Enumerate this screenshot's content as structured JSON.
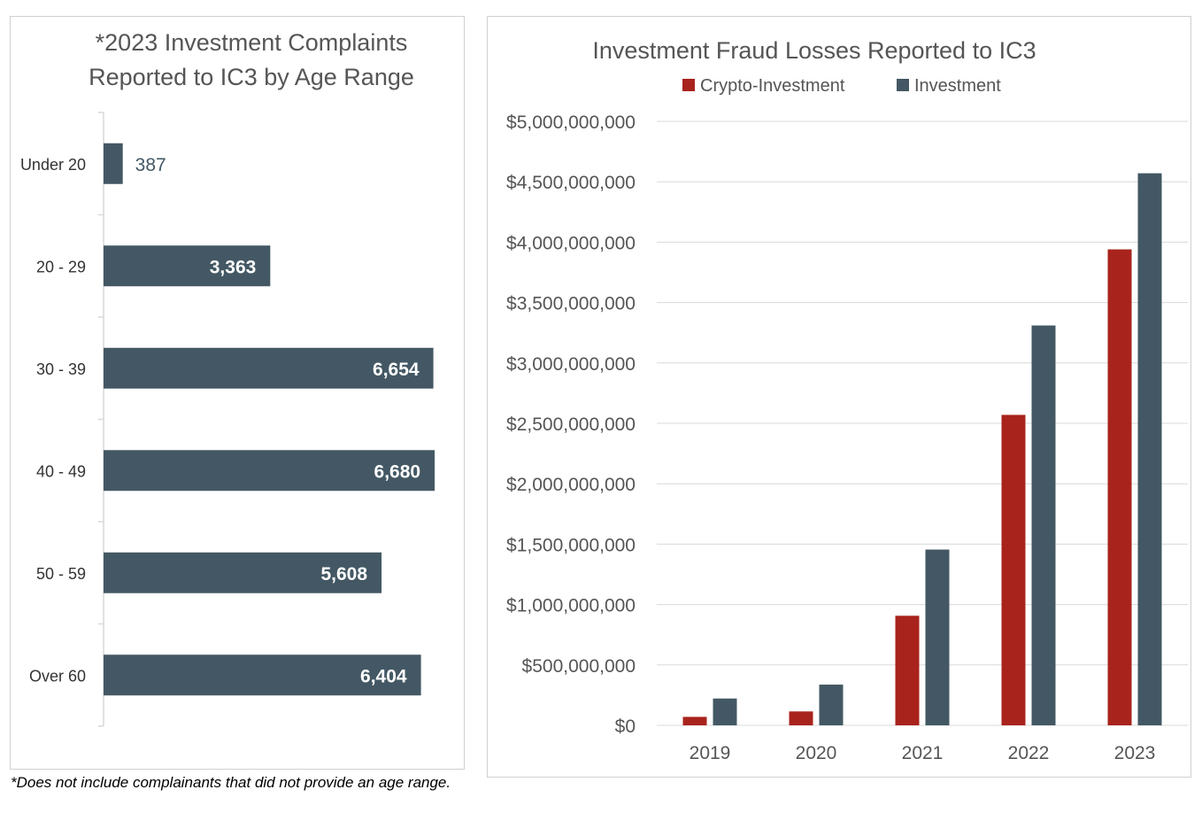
{
  "colors": {
    "bar_dark": "#435864",
    "crypto": "#a8231c",
    "investment": "#435864",
    "axis_text": "#444444",
    "title_text": "#555555",
    "grid": "#d9d9d9",
    "label_light": "#ffffff",
    "label_dark": "#435864"
  },
  "chart_data": [
    {
      "type": "bar",
      "orientation": "horizontal",
      "title_lines": [
        "*2023 Investment Complaints",
        "Reported to IC3 by Age Range"
      ],
      "categories": [
        "Under 20",
        "20 - 29",
        "30 - 39",
        "40 - 49",
        "50 - 59",
        "Over 60"
      ],
      "values": [
        387,
        3363,
        6654,
        6680,
        5608,
        6404
      ],
      "data_labels": [
        "387",
        "3,363",
        "6,654",
        "6,680",
        "5,608",
        "6,404"
      ],
      "xlim": [
        0,
        7000
      ],
      "grid": false
    },
    {
      "type": "bar",
      "title": "Investment Fraud Losses Reported to IC3",
      "categories": [
        "2019",
        "2020",
        "2021",
        "2022",
        "2023"
      ],
      "series": [
        {
          "name": "Crypto-Investment",
          "values": [
            70000000,
            115000000,
            907000000,
            2570000000,
            3940000000
          ]
        },
        {
          "name": "Investment",
          "values": [
            222000000,
            337000000,
            1455000000,
            3310000000,
            4570000000
          ]
        }
      ],
      "ylim": [
        0,
        5000000000
      ],
      "yticks": [
        0,
        500000000,
        1000000000,
        1500000000,
        2000000000,
        2500000000,
        3000000000,
        3500000000,
        4000000000,
        4500000000,
        5000000000
      ],
      "ytick_labels": [
        "$0",
        "$500,000,000",
        "$1,000,000,000",
        "$1,500,000,000",
        "$2,000,000,000",
        "$2,500,000,000",
        "$3,000,000,000",
        "$3,500,000,000",
        "$4,000,000,000",
        "$4,500,000,000",
        "$5,000,000,000"
      ],
      "grid": true,
      "legend_position": "top"
    }
  ],
  "footnote": "*Does not include complainants that did not provide an age range."
}
